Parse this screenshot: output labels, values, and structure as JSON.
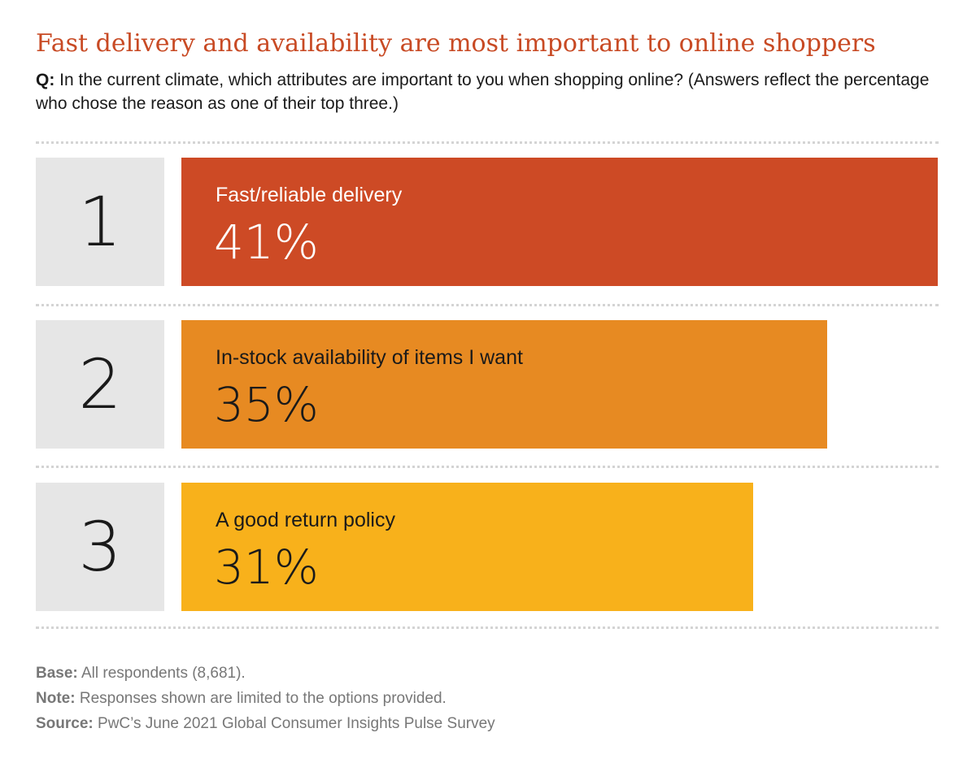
{
  "header": {
    "title": "Fast delivery and availability are most important to online shoppers",
    "question_prefix": "Q:",
    "question_text": "In the current climate, which attributes are important to you when shopping online? (Answers reflect the percentage who chose the reason as one of their top three.)"
  },
  "chart_data": {
    "type": "bar",
    "orientation": "horizontal",
    "title": "Fast delivery and availability are most important to online shoppers",
    "categories": [
      "Fast/reliable delivery",
      "In-stock availability of items I want",
      "A good return policy"
    ],
    "ranks": [
      "1",
      "2",
      "3"
    ],
    "values": [
      41,
      35,
      31
    ],
    "value_labels": [
      "41%",
      "35%",
      "31%"
    ],
    "unit": "%",
    "bar_colors": [
      "#cd4a25",
      "#e78a22",
      "#f8b11b"
    ],
    "value_text_colors": [
      "#ffffff",
      "#1a1a1a",
      "#1a1a1a"
    ],
    "rank_box_color": "#e6e6e6",
    "grid": false,
    "legend": "none"
  },
  "footnotes": [
    {
      "key": "Base:",
      "text": "All respondents (8,681)."
    },
    {
      "key": "Note:",
      "text": "Responses shown are limited to the options provided."
    },
    {
      "key": "Source:",
      "text": "PwC’s June 2021 Global Consumer Insights Pulse Survey"
    }
  ],
  "colors": {
    "title": "#c84a24",
    "divider": "#d4d4d4",
    "footnote": "#777777"
  }
}
